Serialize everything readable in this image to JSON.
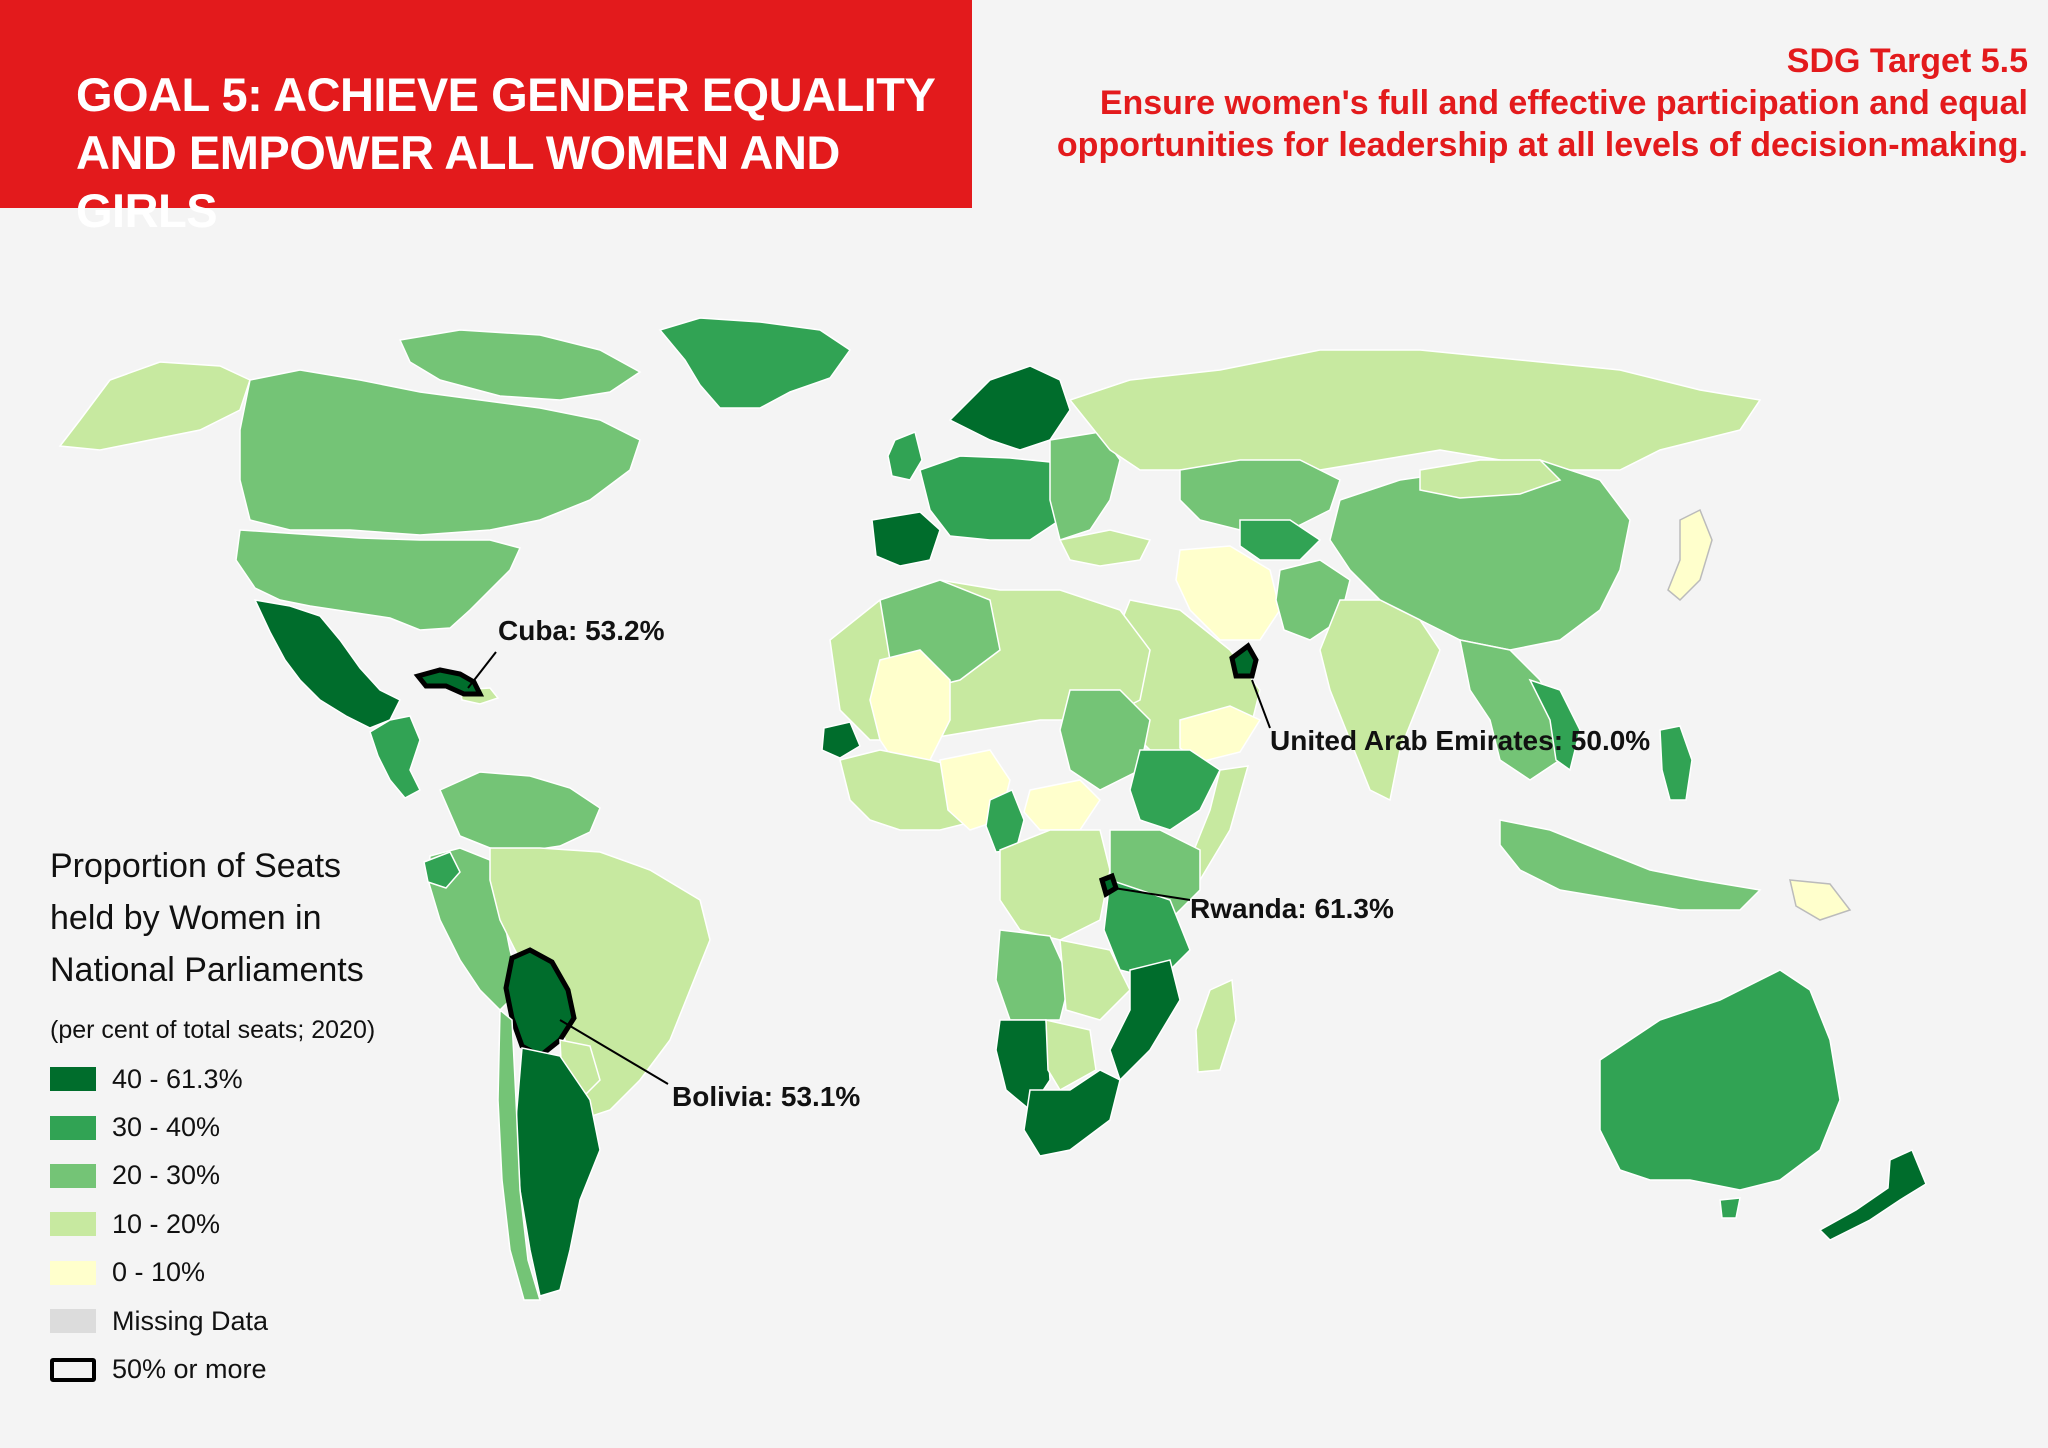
{
  "header": {
    "goal_line1": "GOAL 5: ACHIEVE GENDER EQUALITY",
    "goal_line2": "AND EMPOWER ALL WOMEN AND GIRLS",
    "target_label": "SDG Target 5.5",
    "target_line1": "Ensure women's full and effective participation and equal",
    "target_line2": "opportunities for leadership at all levels of decision-making."
  },
  "colors": {
    "banner": "#e31a1c",
    "c40_61": "#006d2c",
    "c30_40": "#31a354",
    "c20_30": "#74c476",
    "c10_20": "#c7e9a0",
    "c0_10": "#ffffcc",
    "missing": "#dcdcdc"
  },
  "callouts": [
    {
      "id": "cuba",
      "country": "Cuba",
      "value_pct": 53.2,
      "label": "Cuba: 53.2%"
    },
    {
      "id": "uae",
      "country": "United Arab Emirates",
      "value_pct": 50.0,
      "label": "United Arab Emirates: 50.0%"
    },
    {
      "id": "rwanda",
      "country": "Rwanda",
      "value_pct": 61.3,
      "label": "Rwanda: 61.3%"
    },
    {
      "id": "bolivia",
      "country": "Bolivia",
      "value_pct": 53.1,
      "label": "Bolivia: 53.1%"
    }
  ],
  "legend": {
    "title_line1": "Proportion of Seats",
    "title_line2": "held by Women in",
    "title_line3": "National Parliaments",
    "subtitle": "(per cent of total seats; 2020)",
    "items": [
      {
        "label": "40 - 61.3%",
        "color": "#006d2c"
      },
      {
        "label": "30 - 40%",
        "color": "#31a354"
      },
      {
        "label": "20 - 30%",
        "color": "#74c476"
      },
      {
        "label": "10 - 20%",
        "color": "#c7e9a0"
      },
      {
        "label": "0 - 10%",
        "color": "#ffffcc"
      },
      {
        "label": "Missing Data",
        "color": "#dcdcdc"
      },
      {
        "label": "50% or more",
        "color": "outline"
      }
    ]
  }
}
